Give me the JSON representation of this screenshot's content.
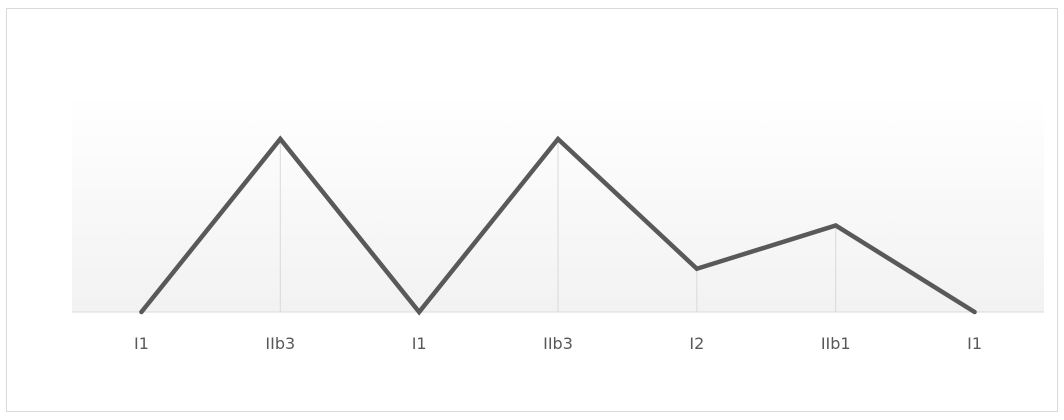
{
  "chart_data": {
    "type": "line",
    "categories": [
      "I1",
      "IIb3",
      "I1",
      "IIb3",
      "I2",
      "IIb1",
      "I1"
    ],
    "series": [
      {
        "values": [
          0,
          4,
          0,
          4,
          1,
          2,
          0
        ]
      }
    ],
    "ylim": [
      0,
      5
    ],
    "grid": "vertical drop lines at data points",
    "legend": "none",
    "colors": {
      "line": "#595959",
      "baseline": "#d9d9d9",
      "droplines": "#d9d9d9",
      "fill_top": "#ffffff",
      "fill_bottom": "#f2f2f2",
      "border": "#d9d9d9"
    }
  }
}
